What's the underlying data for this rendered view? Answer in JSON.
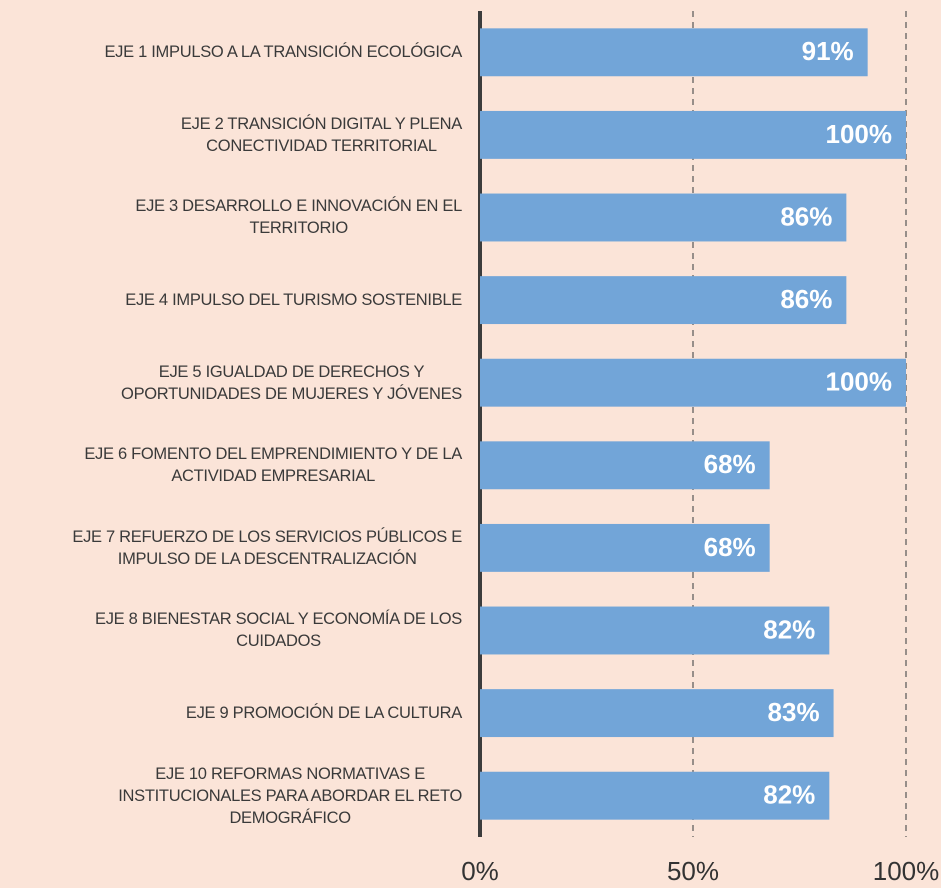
{
  "chart_data": {
    "type": "bar",
    "orientation": "horizontal",
    "categories": [
      "EJE 1 IMPULSO A LA TRANSICIÓN ECOLÓGICA",
      "EJE 2 TRANSICIÓN DIGITAL Y PLENA\nCONECTIVIDAD TERRITORIAL",
      "EJE 3 DESARROLLO E INNOVACIÓN EN EL\nTERRITORIO",
      "EJE 4 IMPULSO DEL TURISMO SOSTENIBLE",
      "EJE 5 IGUALDAD DE DERECHOS Y\nOPORTUNIDADES DE MUJERES Y JÓVENES",
      "EJE 6 FOMENTO DEL EMPRENDIMIENTO Y DE LA\nACTIVIDAD EMPRESARIAL",
      "EJE 7 REFUERZO DE LOS SERVICIOS PÚBLICOS E\nIMPULSO DE LA DESCENTRALIZACIÓN",
      "EJE 8 BIENESTAR SOCIAL Y ECONOMÍA DE LOS\nCUIDADOS",
      "EJE 9 PROMOCIÓN DE LA CULTURA",
      "EJE 10 REFORMAS NORMATIVAS E\nINSTITUCIONALES PARA ABORDAR EL RETO\nDEMOGRÁFICO"
    ],
    "values": [
      91,
      100,
      86,
      86,
      100,
      68,
      68,
      82,
      83,
      82
    ],
    "value_labels": [
      "91%",
      "100%",
      "86%",
      "86%",
      "100%",
      "68%",
      "68%",
      "82%",
      "83%",
      "82%"
    ],
    "color": "#72a5d8",
    "xlim": [
      0,
      100
    ],
    "xticks": [
      {
        "value": 0,
        "label": "0%"
      },
      {
        "value": 50,
        "label": "50%"
      },
      {
        "value": 100,
        "label": "100%"
      }
    ],
    "grid": true
  }
}
